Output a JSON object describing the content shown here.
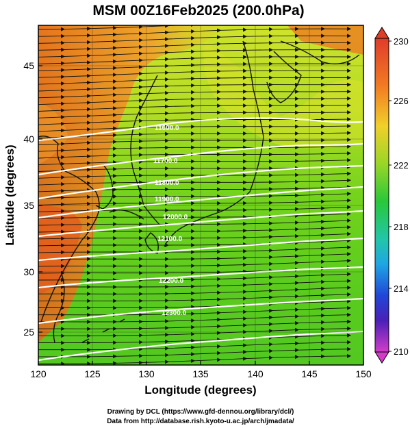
{
  "title": "MSM 00Z16Feb2025 (200.0hPa)",
  "xlabel": "Longitude (degrees)",
  "ylabel": "Latitude  (degrees)",
  "x_ticks": [
    "120",
    "125",
    "130",
    "135",
    "140",
    "145",
    "150"
  ],
  "y_ticks": [
    "45",
    "40",
    "35",
    "30",
    "25"
  ],
  "colorbar": {
    "min": 210,
    "max": 230,
    "ticks": [
      "230",
      "226",
      "222",
      "218",
      "214",
      "210"
    ]
  },
  "contour_labels": [
    "11600.0",
    "11700.0",
    "11800.0",
    "11900.0",
    "12000.0",
    "12100.0",
    "12200.0",
    "12300.0"
  ],
  "credits": {
    "line1": "Drawing by DCL (https://www.gfd-dennou.org/library/dcl/)",
    "line2": "Data from http://database.rish.kyoto-u.ac.jp/arch/jmadata/"
  },
  "chart_data": {
    "type": "heatmap",
    "title": "MSM 00Z16Feb2025 (200.0hPa)",
    "xlabel": "Longitude (degrees)",
    "ylabel": "Latitude  (degrees)",
    "xlim": [
      120,
      150
    ],
    "ylim": [
      22.4,
      47.6
    ],
    "shaded_field_range": [
      210,
      230
    ],
    "contour_values": [
      11600,
      11700,
      11800,
      11900,
      12000,
      12100,
      12200,
      12300
    ],
    "vectors": "streamlines with arrowheads, predominantly westerly",
    "grid": true
  }
}
